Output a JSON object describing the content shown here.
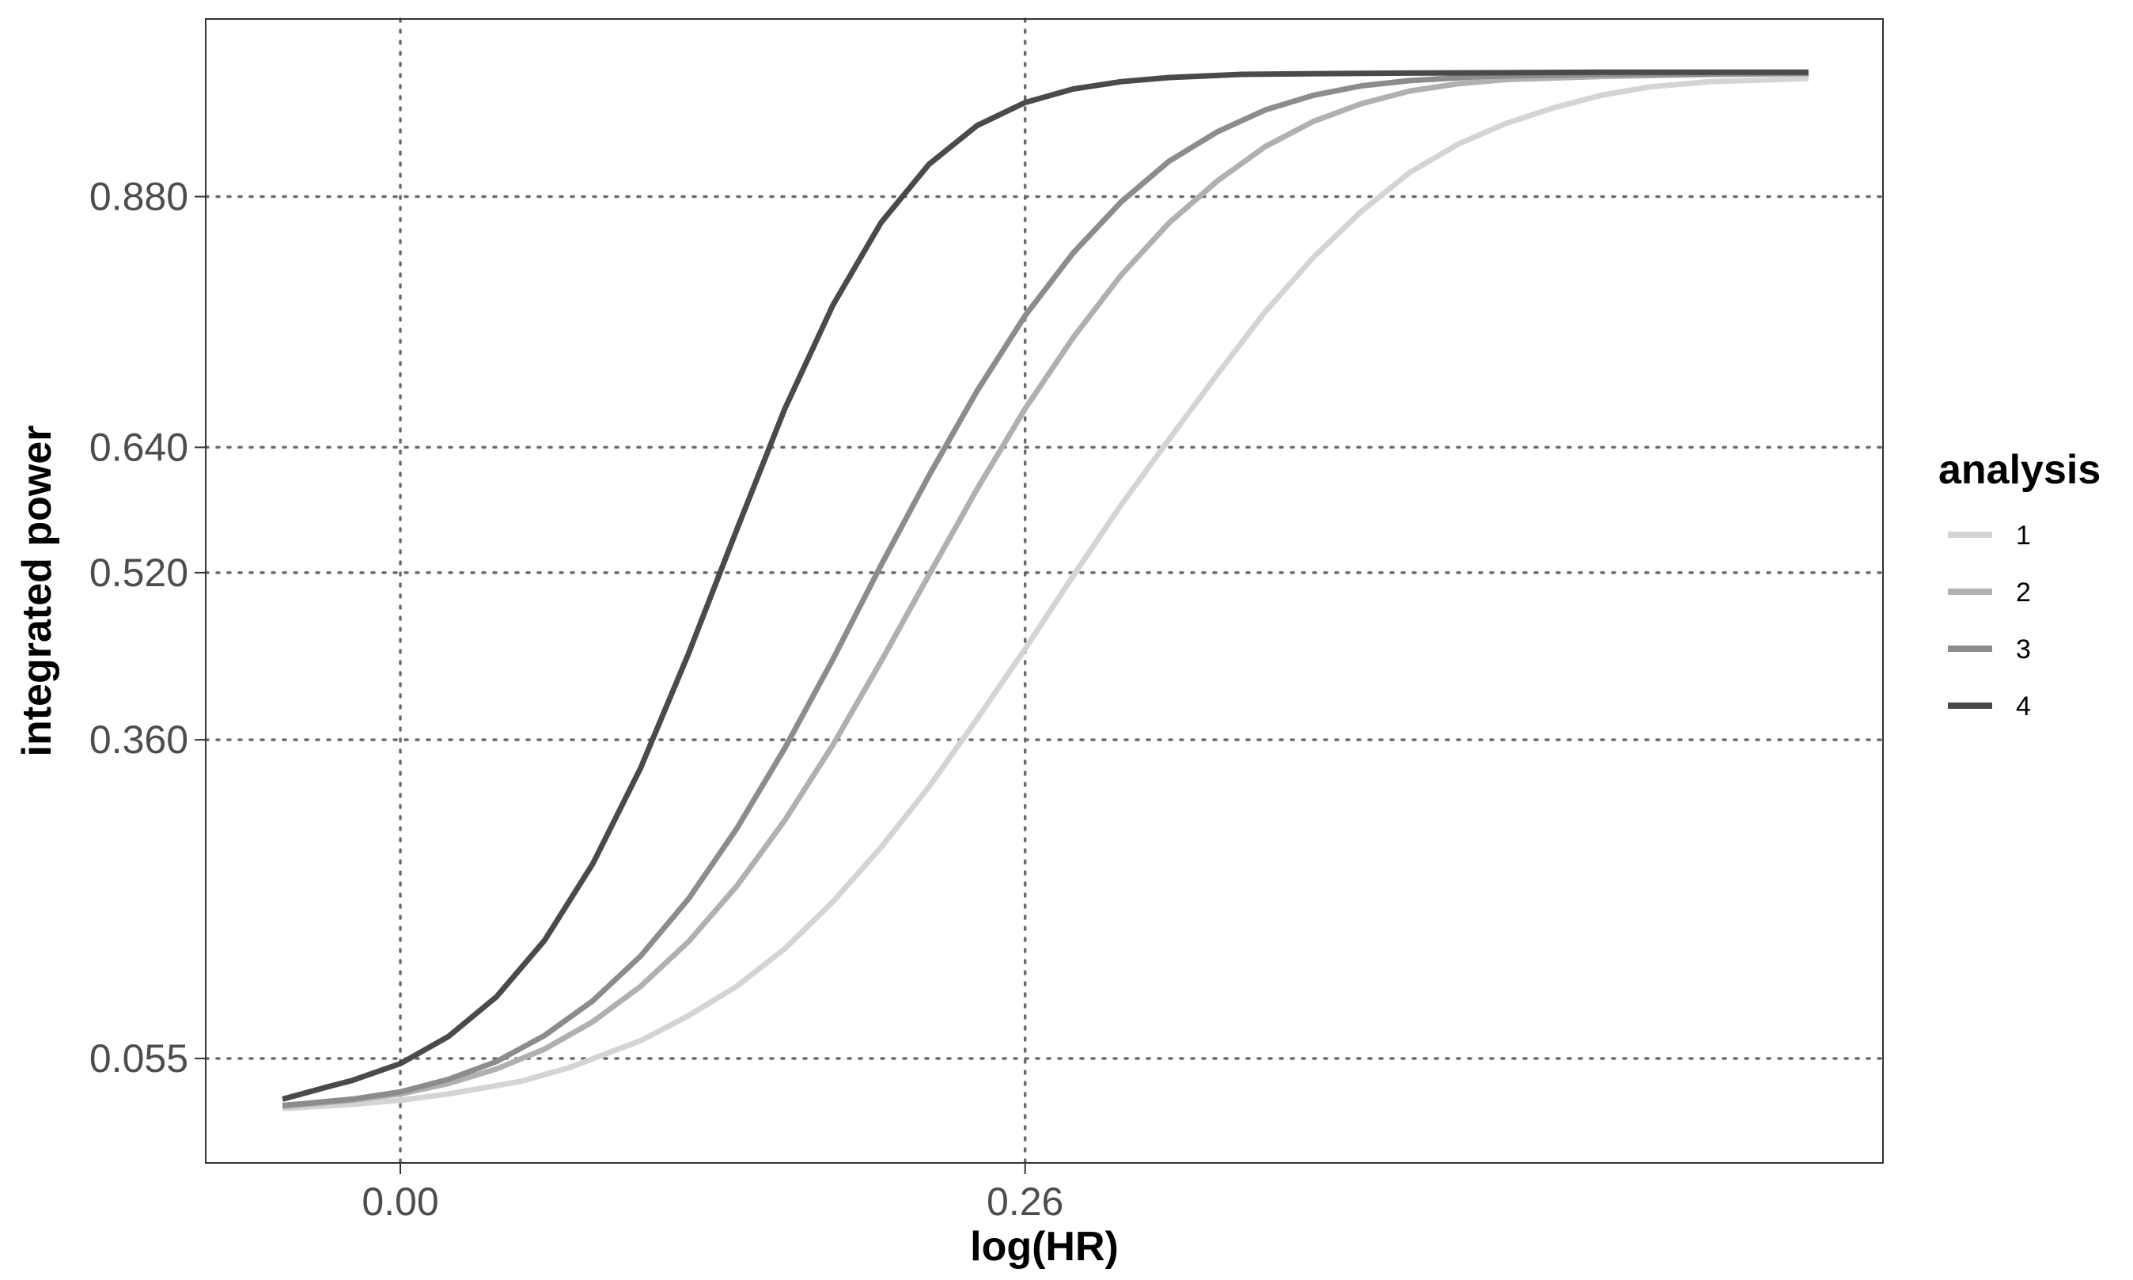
{
  "chart_data": {
    "type": "line",
    "xlabel": "log(HR)",
    "ylabel": "integrated power",
    "x_ticks": [
      0.0,
      0.26
    ],
    "x_tick_labels": [
      "0.00",
      "0.26"
    ],
    "y_ticks": [
      0.055,
      0.36,
      0.52,
      0.64,
      0.88
    ],
    "y_tick_labels": [
      "0.055",
      "0.360",
      "0.520",
      "0.640",
      "0.880"
    ],
    "xlim": [
      -0.081,
      0.617
    ],
    "ylim": [
      -0.045,
      1.05
    ],
    "grid": "dotted, at tick positions",
    "legend": {
      "title": "analysis",
      "position": "right"
    },
    "series": [
      {
        "name": "1",
        "color": "#d4d4d4",
        "points": [
          [
            -0.049,
            0.007
          ],
          [
            -0.02,
            0.011
          ],
          [
            0.0,
            0.015
          ],
          [
            0.02,
            0.021
          ],
          [
            0.05,
            0.033
          ],
          [
            0.07,
            0.046
          ],
          [
            0.1,
            0.072
          ],
          [
            0.12,
            0.096
          ],
          [
            0.14,
            0.124
          ],
          [
            0.16,
            0.16
          ],
          [
            0.18,
            0.205
          ],
          [
            0.2,
            0.257
          ],
          [
            0.22,
            0.315
          ],
          [
            0.24,
            0.38
          ],
          [
            0.26,
            0.447
          ],
          [
            0.28,
            0.517
          ],
          [
            0.3,
            0.585
          ],
          [
            0.32,
            0.648
          ],
          [
            0.34,
            0.71
          ],
          [
            0.36,
            0.77
          ],
          [
            0.38,
            0.822
          ],
          [
            0.4,
            0.866
          ],
          [
            0.42,
            0.903
          ],
          [
            0.44,
            0.93
          ],
          [
            0.46,
            0.95
          ],
          [
            0.48,
            0.965
          ],
          [
            0.5,
            0.977
          ],
          [
            0.52,
            0.985
          ],
          [
            0.545,
            0.99
          ],
          [
            0.586,
            0.993
          ]
        ]
      },
      {
        "name": "2",
        "color": "#b0b0b0",
        "points": [
          [
            -0.049,
            0.009
          ],
          [
            -0.02,
            0.015
          ],
          [
            0.0,
            0.021
          ],
          [
            0.02,
            0.031
          ],
          [
            0.04,
            0.045
          ],
          [
            0.06,
            0.064
          ],
          [
            0.08,
            0.09
          ],
          [
            0.1,
            0.124
          ],
          [
            0.12,
            0.167
          ],
          [
            0.14,
            0.22
          ],
          [
            0.16,
            0.283
          ],
          [
            0.18,
            0.355
          ],
          [
            0.2,
            0.435
          ],
          [
            0.22,
            0.518
          ],
          [
            0.24,
            0.6
          ],
          [
            0.26,
            0.677
          ],
          [
            0.28,
            0.745
          ],
          [
            0.3,
            0.805
          ],
          [
            0.32,
            0.855
          ],
          [
            0.34,
            0.895
          ],
          [
            0.36,
            0.928
          ],
          [
            0.38,
            0.952
          ],
          [
            0.4,
            0.969
          ],
          [
            0.42,
            0.981
          ],
          [
            0.44,
            0.988
          ],
          [
            0.46,
            0.992
          ],
          [
            0.5,
            0.995
          ],
          [
            0.55,
            0.997
          ],
          [
            0.586,
            0.998
          ]
        ]
      },
      {
        "name": "3",
        "color": "#8c8c8c",
        "points": [
          [
            -0.049,
            0.01
          ],
          [
            -0.02,
            0.016
          ],
          [
            0.0,
            0.023
          ],
          [
            0.02,
            0.035
          ],
          [
            0.04,
            0.052
          ],
          [
            0.06,
            0.077
          ],
          [
            0.08,
            0.11
          ],
          [
            0.1,
            0.153
          ],
          [
            0.12,
            0.208
          ],
          [
            0.14,
            0.275
          ],
          [
            0.16,
            0.352
          ],
          [
            0.18,
            0.437
          ],
          [
            0.2,
            0.527
          ],
          [
            0.22,
            0.613
          ],
          [
            0.24,
            0.694
          ],
          [
            0.26,
            0.766
          ],
          [
            0.28,
            0.826
          ],
          [
            0.3,
            0.875
          ],
          [
            0.32,
            0.914
          ],
          [
            0.34,
            0.942
          ],
          [
            0.36,
            0.963
          ],
          [
            0.38,
            0.977
          ],
          [
            0.4,
            0.986
          ],
          [
            0.42,
            0.991
          ],
          [
            0.45,
            0.995
          ],
          [
            0.5,
            0.997
          ],
          [
            0.586,
            0.998
          ]
        ]
      },
      {
        "name": "4",
        "color": "#4a4a4a",
        "points": [
          [
            -0.049,
            0.016
          ],
          [
            -0.03,
            0.028
          ],
          [
            -0.02,
            0.034
          ],
          [
            0.0,
            0.05
          ],
          [
            0.02,
            0.076
          ],
          [
            0.04,
            0.114
          ],
          [
            0.06,
            0.168
          ],
          [
            0.08,
            0.241
          ],
          [
            0.1,
            0.333
          ],
          [
            0.12,
            0.443
          ],
          [
            0.14,
            0.561
          ],
          [
            0.16,
            0.677
          ],
          [
            0.18,
            0.776
          ],
          [
            0.2,
            0.855
          ],
          [
            0.22,
            0.911
          ],
          [
            0.24,
            0.948
          ],
          [
            0.26,
            0.97
          ],
          [
            0.28,
            0.983
          ],
          [
            0.3,
            0.99
          ],
          [
            0.32,
            0.994
          ],
          [
            0.35,
            0.997
          ],
          [
            0.4,
            0.998
          ],
          [
            0.5,
            0.999
          ],
          [
            0.586,
            0.999
          ]
        ]
      }
    ]
  }
}
